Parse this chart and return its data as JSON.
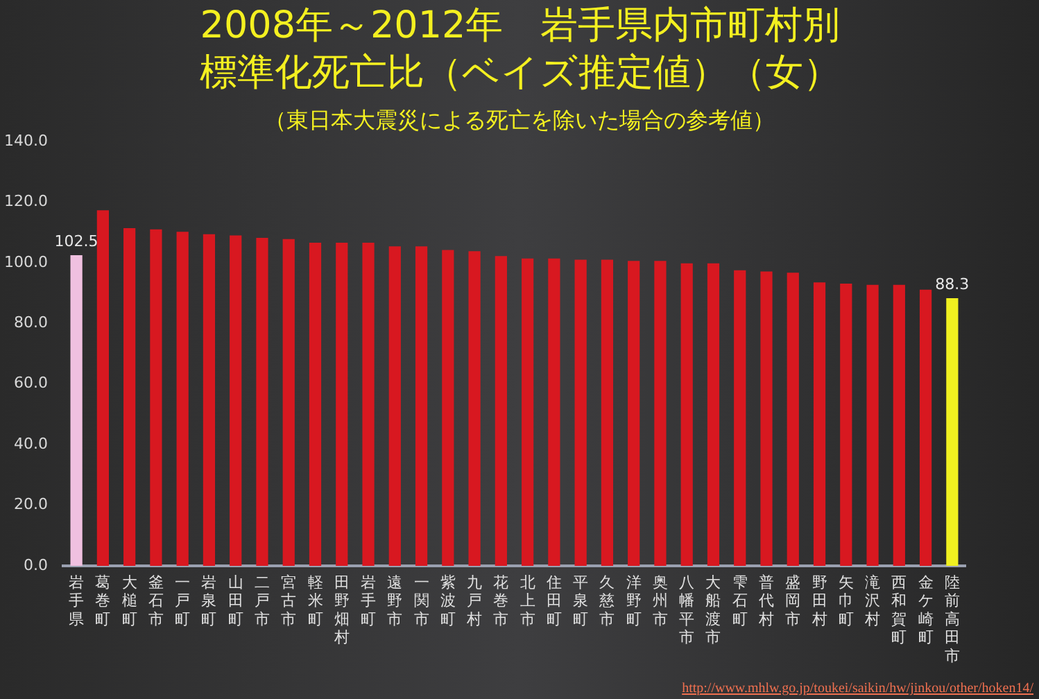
{
  "chart_data": {
    "type": "bar",
    "title": "2008年～2012年　岩手県内市町村別標準化死亡比（ベイズ推定値）（女）",
    "subtitle": "（東日本大震災による死亡を除いた場合の参考値）",
    "categories": [
      "岩手県",
      "葛巻町",
      "大槌町",
      "釜石市",
      "一戸町",
      "岩泉町",
      "山田町",
      "二戸市",
      "宮古市",
      "軽米町",
      "田野畑村",
      "岩手町",
      "遠野市",
      "一関市",
      "紫波町",
      "九戸村",
      "花巻市",
      "北上市",
      "住田町",
      "平泉町",
      "久慈市",
      "洋野町",
      "奥州市",
      "八幡平市",
      "大船渡市",
      "雫石町",
      "普代村",
      "盛岡市",
      "野田村",
      "矢巾町",
      "滝沢村",
      "西和賀町",
      "金ケ崎町",
      "陸前高田市"
    ],
    "values": [
      102.5,
      117.3,
      111.4,
      111.0,
      110.2,
      109.4,
      109.0,
      108.2,
      107.8,
      106.6,
      106.6,
      106.6,
      105.4,
      105.4,
      104.2,
      103.8,
      102.2,
      101.4,
      101.4,
      101.0,
      101.0,
      100.6,
      100.6,
      99.8,
      99.8,
      97.5,
      97.1,
      96.7,
      93.5,
      93.1,
      92.7,
      92.7,
      91.1,
      88.3
    ],
    "value_labels": [
      "102.5",
      null,
      null,
      null,
      null,
      null,
      null,
      null,
      null,
      null,
      null,
      null,
      null,
      null,
      null,
      null,
      null,
      null,
      null,
      null,
      null,
      null,
      null,
      null,
      null,
      null,
      null,
      null,
      null,
      null,
      null,
      null,
      null,
      "88.3"
    ],
    "colors": [
      "#f0c0e0",
      "#d81820",
      "#d81820",
      "#d81820",
      "#d81820",
      "#d81820",
      "#d81820",
      "#d81820",
      "#d81820",
      "#d81820",
      "#d81820",
      "#d81820",
      "#d81820",
      "#d81820",
      "#d81820",
      "#d81820",
      "#d81820",
      "#d81820",
      "#d81820",
      "#d81820",
      "#d81820",
      "#d81820",
      "#d81820",
      "#d81820",
      "#d81820",
      "#d81820",
      "#d81820",
      "#d81820",
      "#d81820",
      "#d81820",
      "#d81820",
      "#d81820",
      "#d81820",
      "#f0f020"
    ],
    "ylim": [
      0,
      140
    ],
    "yticks": [
      {
        "value": 0,
        "label": "0.0"
      },
      {
        "value": 20,
        "label": "20.0"
      },
      {
        "value": 40,
        "label": "40.0"
      },
      {
        "value": 60,
        "label": "60.0"
      },
      {
        "value": 80,
        "label": "80.0"
      },
      {
        "value": 100,
        "label": "100.0"
      },
      {
        "value": 120,
        "label": "120.0"
      },
      {
        "value": 140,
        "label": "140.0"
      }
    ],
    "grid": false,
    "legend": false,
    "annotations": [
      "http://www.mhlw.go.jp/toukei/saikin/hw/jinkou/other/hoken14/"
    ]
  }
}
